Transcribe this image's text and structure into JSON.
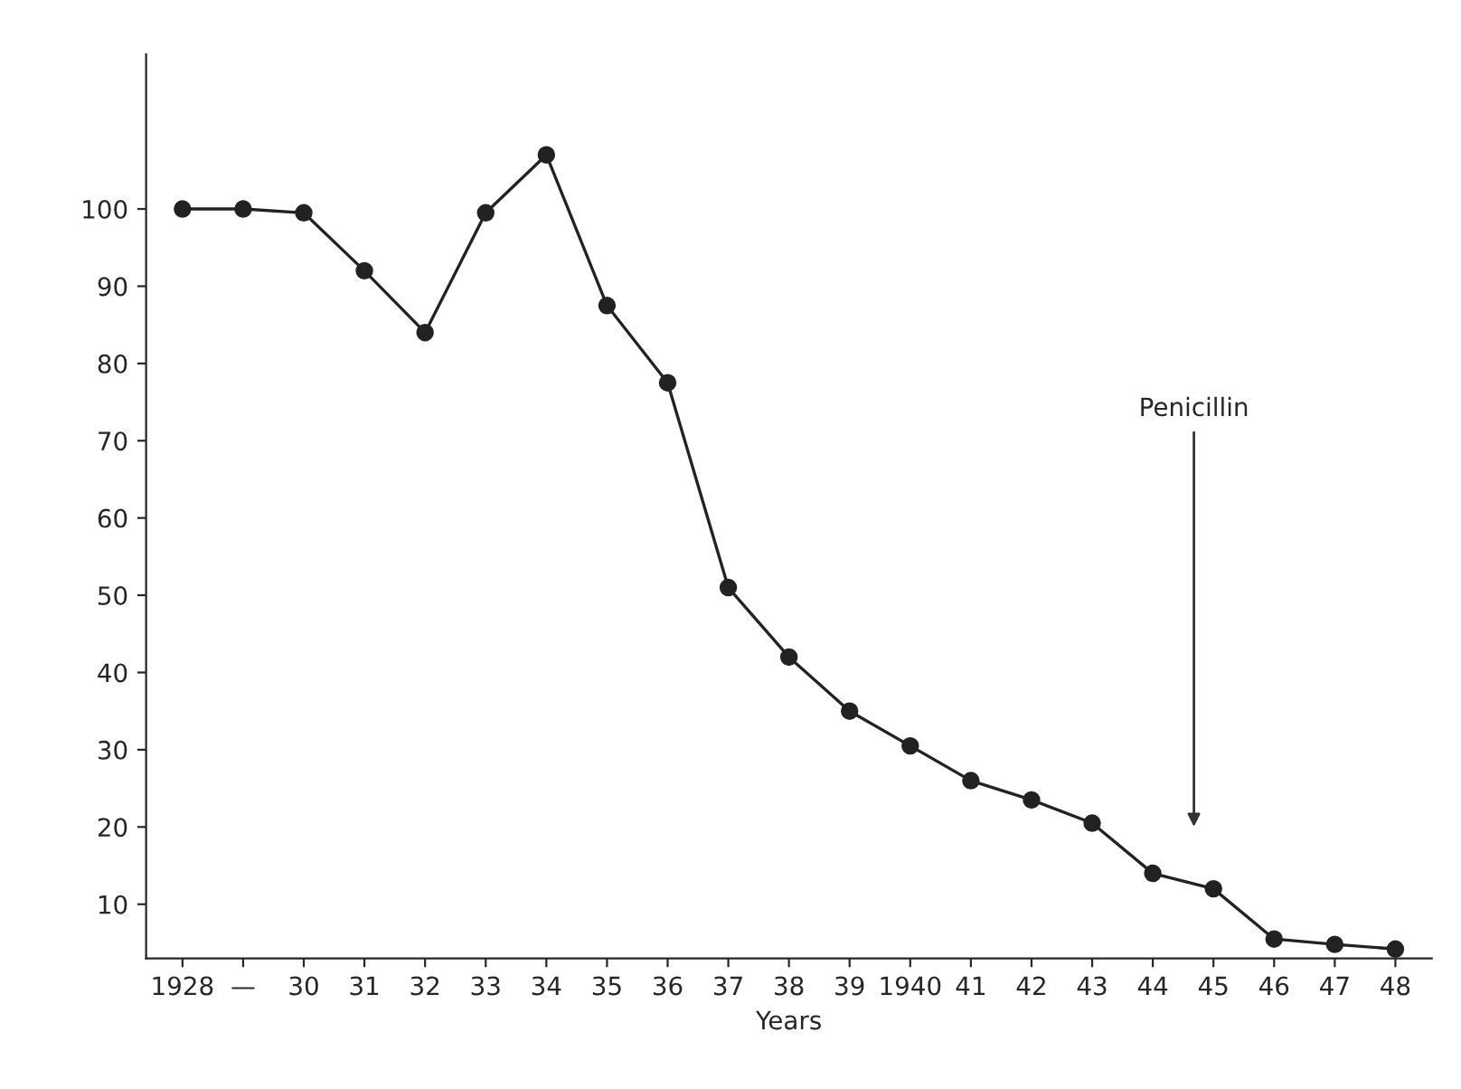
{
  "chart_data": {
    "type": "line",
    "xlabel": "Years",
    "categories": [
      "1928",
      "—",
      "30",
      "31",
      "32",
      "33",
      "34",
      "35",
      "36",
      "37",
      "38",
      "39",
      "1940",
      "41",
      "42",
      "43",
      "44",
      "45",
      "46",
      "47",
      "48"
    ],
    "series": [
      {
        "color": "#222222",
        "values": [
          100,
          100,
          99.5,
          92,
          84,
          99.5,
          107,
          87.5,
          77.5,
          51,
          42,
          35,
          30.5,
          26,
          23.5,
          20.5,
          14,
          12,
          5.5,
          4.8,
          4.2
        ]
      }
    ],
    "ylim": [
      3,
      120
    ],
    "yticks": [
      10,
      20,
      30,
      40,
      50,
      60,
      70,
      80,
      90,
      100
    ],
    "annotations": [
      "Penicillin"
    ],
    "marker": "circle",
    "line_style": "solid",
    "grid": false,
    "legend": false
  }
}
